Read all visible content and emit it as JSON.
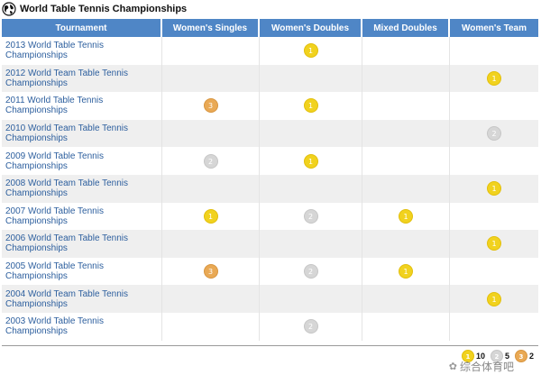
{
  "title": "World Table Tennis Championships",
  "columns": [
    "Tournament",
    "Women's Singles",
    "Women's Doubles",
    "Mixed Doubles",
    "Women's Team"
  ],
  "rows": [
    {
      "line1": "2013 World Table Tennis",
      "line2": "Championships",
      "medals": [
        "",
        "gold",
        "",
        ""
      ]
    },
    {
      "line1": "2012 World Team Table Tennis",
      "line2": "Championships",
      "medals": [
        "",
        "",
        "",
        "gold"
      ]
    },
    {
      "line1": "2011 World Table Tennis",
      "line2": "Championships",
      "medals": [
        "bronze",
        "gold",
        "",
        ""
      ]
    },
    {
      "line1": "2010 World Team Table Tennis",
      "line2": "Championships",
      "medals": [
        "",
        "",
        "",
        "silver"
      ]
    },
    {
      "line1": "2009 World Table Tennis",
      "line2": "Championships",
      "medals": [
        "silver",
        "gold",
        "",
        ""
      ]
    },
    {
      "line1": "2008 World Team Table Tennis",
      "line2": "Championships",
      "medals": [
        "",
        "",
        "",
        "gold"
      ]
    },
    {
      "line1": "2007 World Table Tennis",
      "line2": "Championships",
      "medals": [
        "gold",
        "silver",
        "gold",
        ""
      ]
    },
    {
      "line1": "2006 World Team Table Tennis",
      "line2": "Championships",
      "medals": [
        "",
        "",
        "",
        "gold"
      ]
    },
    {
      "line1": "2005 World Table Tennis",
      "line2": "Championships",
      "medals": [
        "bronze",
        "silver",
        "gold",
        ""
      ]
    },
    {
      "line1": "2004 World Team Table Tennis",
      "line2": "Championships",
      "medals": [
        "",
        "",
        "",
        "gold"
      ]
    },
    {
      "line1": "2003 World Table Tennis",
      "line2": "Championships",
      "medals": [
        "",
        "silver",
        "",
        ""
      ]
    }
  ],
  "medal_numbers": {
    "gold": "1",
    "silver": "2",
    "bronze": "3"
  },
  "totals": {
    "gold": "10",
    "silver": "5",
    "bronze": "2"
  },
  "watermark": "综合体育吧",
  "colors": {
    "header_bg": "#4f86c6",
    "link": "#2d5f9e",
    "gold": "#f1d21e",
    "silver": "#d6d6d6",
    "bronze": "#e9a955"
  },
  "icons": {
    "title": "globe-icon",
    "watermark": "wechat-icon"
  }
}
